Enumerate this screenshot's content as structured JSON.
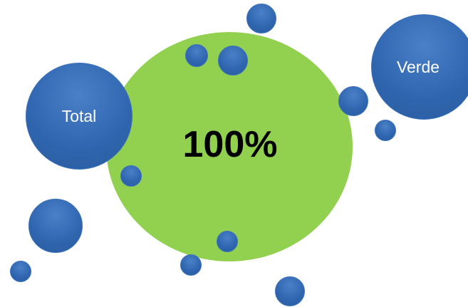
{
  "colors": {
    "center_fill": "#92d050",
    "bubble_fill": "#2f65ae",
    "label_text": "#ffffff",
    "value_text": "#000000"
  },
  "center": {
    "value": "100%"
  },
  "labels": {
    "total": "Total",
    "verde": "Verde"
  }
}
